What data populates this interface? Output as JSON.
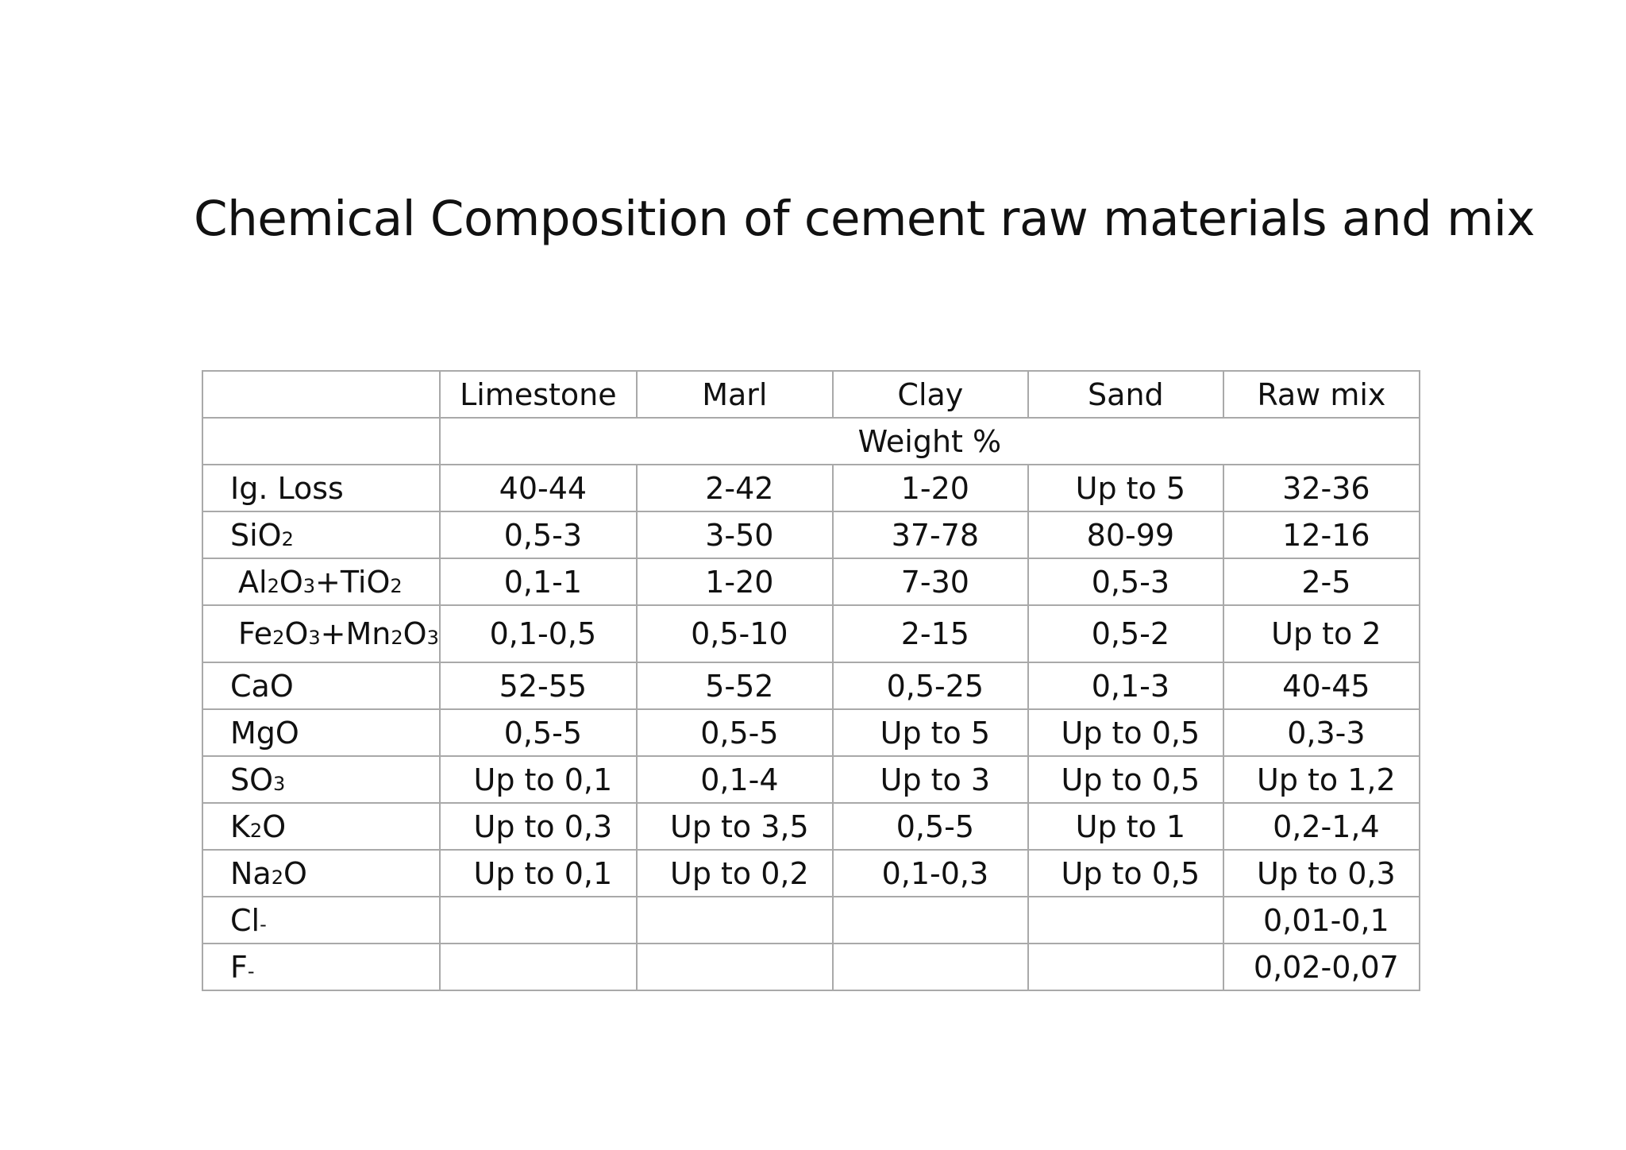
{
  "title": "Chemical Composition of cement raw materials and mix",
  "table": {
    "headers": [
      "",
      "Limestone",
      "Marl",
      "Clay",
      "Sand",
      "Raw mix"
    ],
    "unit_row": "Weight %",
    "rows": [
      {
        "label": "Ig. Loss",
        "values": [
          "40-44",
          "2-42",
          "1-20",
          "Up to 5",
          "32-36"
        ]
      },
      {
        "label": "SiO2",
        "values": [
          "0,5-3",
          "3-50",
          "37-78",
          "80-99",
          "12-16"
        ]
      },
      {
        "label": "Al2O3+TiO2",
        "values": [
          "0,1-1",
          "1-20",
          "7-30",
          "0,5-3",
          "2-5"
        ]
      },
      {
        "label": "Fe2O3+Mn2O3",
        "values": [
          "0,1-0,5",
          "0,5-10",
          "2-15",
          "0,5-2",
          "Up to 2"
        ]
      },
      {
        "label": "CaO",
        "values": [
          "52-55",
          "5-52",
          "0,5-25",
          "0,1-3",
          "40-45"
        ]
      },
      {
        "label": "MgO",
        "values": [
          "0,5-5",
          "0,5-5",
          "Up to 5",
          "Up to 0,5",
          "0,3-3"
        ]
      },
      {
        "label": "SO3",
        "values": [
          "Up to 0,1",
          "0,1-4",
          "Up to 3",
          "Up to 0,5",
          "Up to 1,2"
        ]
      },
      {
        "label": "K2O",
        "values": [
          "Up to 0,3",
          "Up to 3,5",
          "0,5-5",
          "Up to 1",
          "0,2-1,4"
        ]
      },
      {
        "label": "Na2O",
        "values": [
          "Up to 0,1",
          "Up to 0,2",
          "0,1-0,3",
          "Up to 0,5",
          "Up to 0,3"
        ]
      },
      {
        "label": "Cl-",
        "values": [
          "",
          "",
          "",
          "",
          "0,01-0,1"
        ]
      },
      {
        "label": "F-",
        "values": [
          "",
          "",
          "",
          "",
          "0,02-0,07"
        ]
      }
    ]
  }
}
